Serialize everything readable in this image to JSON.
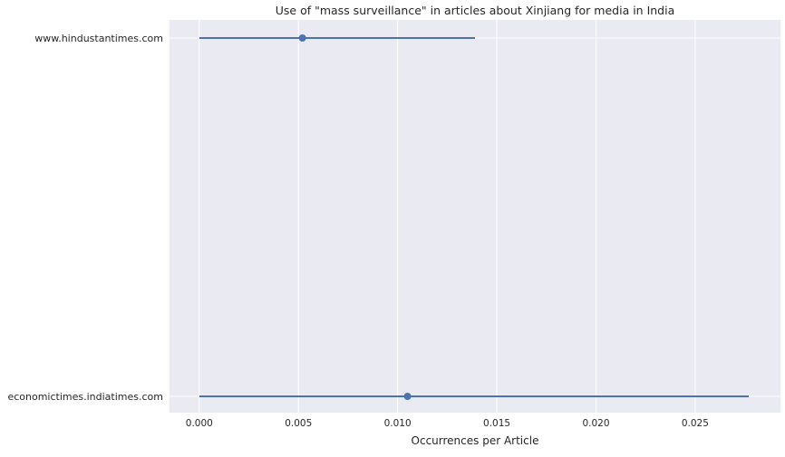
{
  "chart_data": {
    "type": "scatter",
    "title": "Use of \"mass surveillance\" in articles about Xinjiang for media in India",
    "xlabel": "Occurrences per Article",
    "ylabel": "",
    "xlim": [
      -0.0015,
      0.0293
    ],
    "x_ticks": [
      "0.000",
      "0.005",
      "0.010",
      "0.015",
      "0.020",
      "0.025"
    ],
    "x_tick_values": [
      0,
      0.005,
      0.01,
      0.015,
      0.02,
      0.025
    ],
    "categories": [
      "www.hindustantimes.com",
      "economictimes.indiatimes.com"
    ],
    "points": [
      {
        "label": "www.hindustantimes.com",
        "value": 0.0052,
        "ci_low": 0.0,
        "ci_high": 0.0139
      },
      {
        "label": "economictimes.indiatimes.com",
        "value": 0.0105,
        "ci_low": 0.0,
        "ci_high": 0.0277
      }
    ],
    "grid": true,
    "colors": {
      "background": "#EAEAF2",
      "grid": "#FFFFFF",
      "series": "#4C72B0"
    }
  }
}
